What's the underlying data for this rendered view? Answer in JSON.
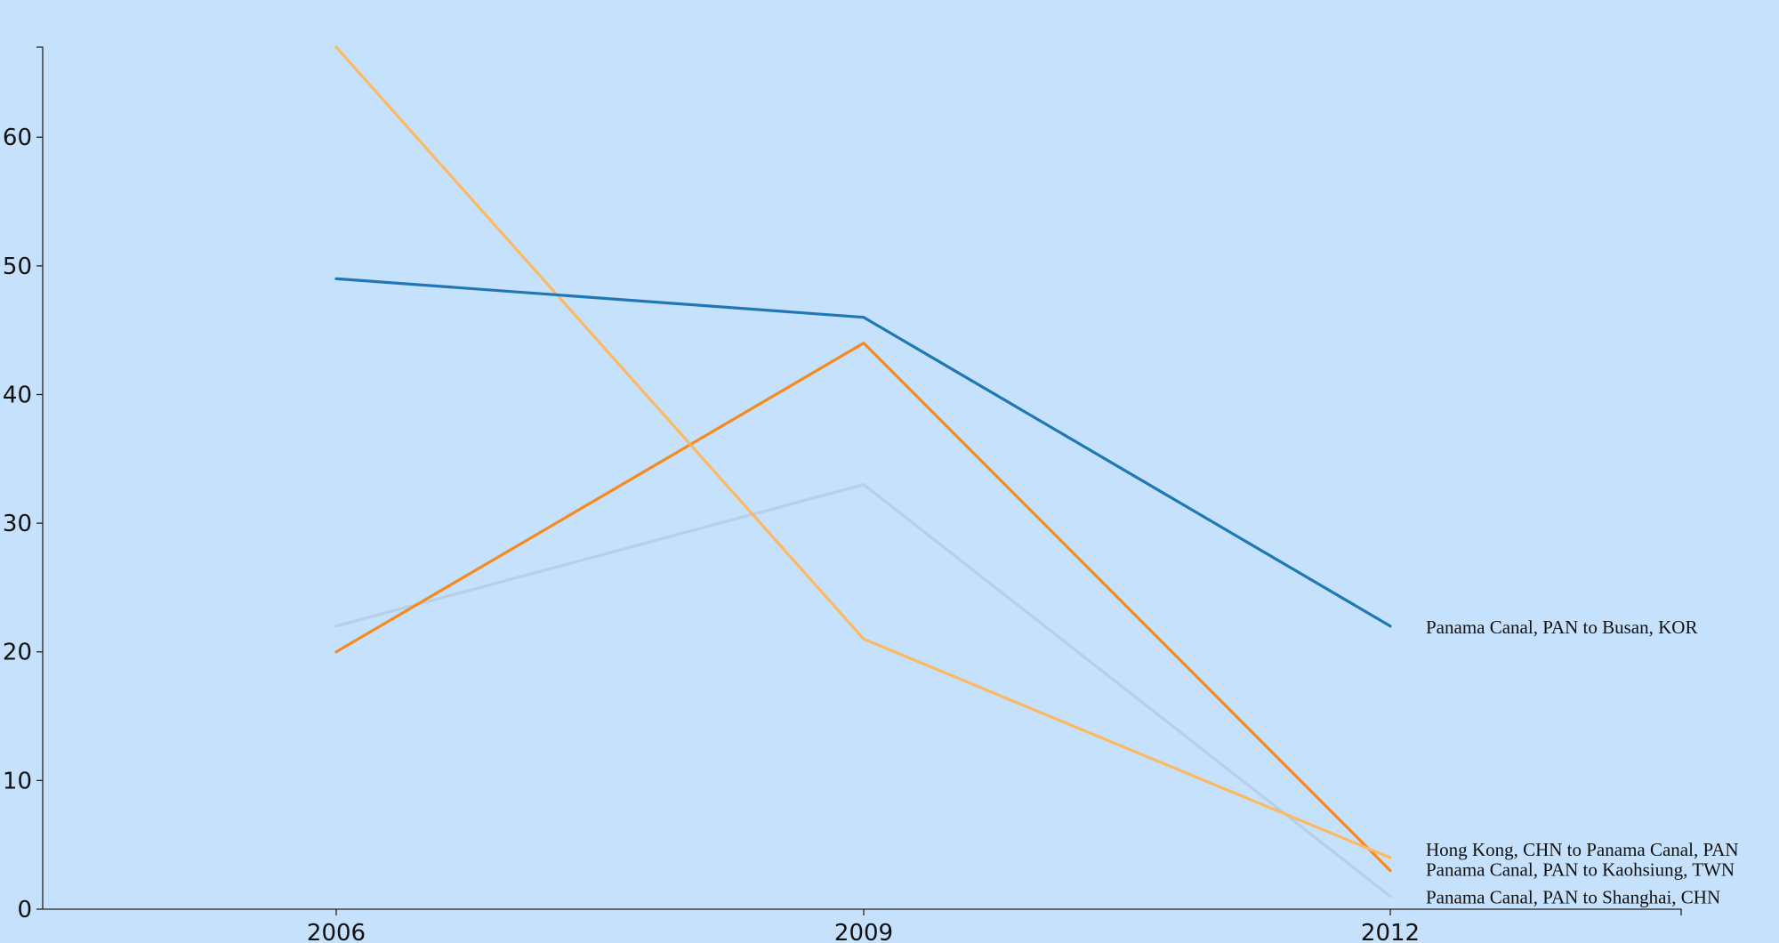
{
  "chart_data": {
    "type": "line",
    "title": "",
    "xlabel": "",
    "ylabel": "",
    "x": [
      2006,
      2009,
      2012
    ],
    "ylim": [
      0,
      67
    ],
    "y_ticks": [
      0,
      10,
      20,
      30,
      40,
      50,
      60
    ],
    "grid": false,
    "legend": "end-of-line labels",
    "series": [
      {
        "name": "Panama Canal, PAN to Shanghai, CHN",
        "color": "#b7cfe8",
        "values": [
          22,
          33,
          1
        ]
      },
      {
        "name": "Panama Canal, PAN to Kaohsiung, TWN",
        "color": "#f68a1f",
        "values": [
          20,
          44,
          3
        ]
      },
      {
        "name": "Hong Kong, CHN to Panama Canal, PAN",
        "color": "#fdb863",
        "values": [
          67,
          21,
          4
        ]
      },
      {
        "name": "Panama Canal, PAN to Busan, KOR",
        "color": "#1f77b4",
        "values": [
          49,
          46,
          22
        ]
      }
    ]
  }
}
